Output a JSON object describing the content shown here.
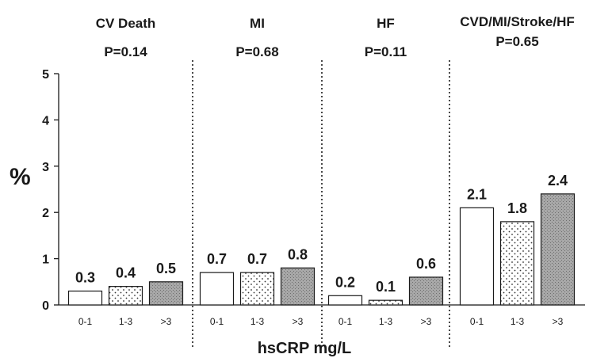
{
  "chart_data": {
    "type": "bar",
    "ylabel": "%",
    "xlabel": "hsCRP mg/L",
    "ylim": [
      0,
      5
    ],
    "yticks": [
      0,
      1,
      2,
      3,
      4,
      5
    ],
    "categories": [
      "0-1",
      "1-3",
      ">3"
    ],
    "fills": [
      "white",
      "dotted",
      "hatched"
    ],
    "panels": [
      {
        "title": "CV Death",
        "p_value": "P=0.14",
        "values": [
          0.3,
          0.4,
          0.5
        ],
        "labels": [
          "0.3",
          "0.4",
          "0.5"
        ]
      },
      {
        "title": "MI",
        "p_value": "P=0.68",
        "values": [
          0.7,
          0.7,
          0.8
        ],
        "labels": [
          "0.7",
          "0.7",
          "0.8"
        ]
      },
      {
        "title": "HF",
        "p_value": "P=0.11",
        "values": [
          0.2,
          0.1,
          0.6
        ],
        "labels": [
          "0.2",
          "0.1",
          "0.6"
        ]
      },
      {
        "title": "CVD/MI/Stroke/HF",
        "p_value": "P=0.65",
        "values": [
          2.1,
          1.8,
          2.4
        ],
        "labels": [
          "2.1",
          "1.8",
          "2.4"
        ]
      }
    ]
  }
}
